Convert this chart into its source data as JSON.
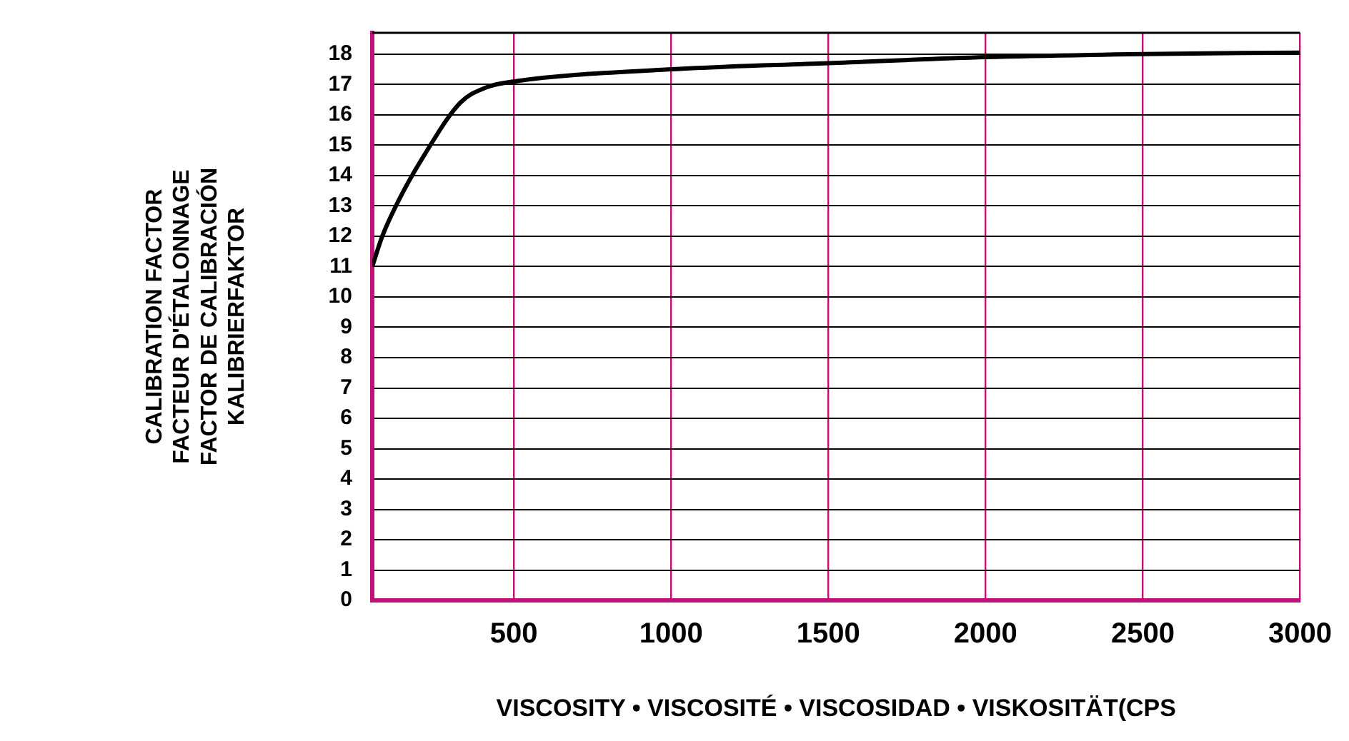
{
  "chart_data": {
    "type": "line",
    "xlabel": "VISCOSITY • VISCOSITÉ • VISCOSIDAD • VISKOSITÄT(CPS",
    "ylabel": "CALIBRATION FACTOR\nFACTEUR D'ÉTALONNAGE\nFACTOR DE CALIBRACIÓN\nKALIBRIERFAKTOR",
    "series": [
      {
        "color": "#000000",
        "x": [
          50,
          82,
          140,
          217,
          330,
          412,
          502,
          1000,
          1500,
          2000,
          2500,
          3000
        ],
        "values": [
          11,
          12,
          13.3,
          14.7,
          16.4,
          16.9,
          17.1,
          17.5,
          17.7,
          17.9,
          18,
          18.05
        ]
      }
    ],
    "xlim": [
      50,
      3000
    ],
    "xticks": [
      500,
      1000,
      1500,
      2000,
      2500,
      3000
    ],
    "ylim": [
      0,
      18.7
    ],
    "yticks": [
      0,
      1,
      2,
      3,
      4,
      5,
      6,
      7,
      8,
      9,
      10,
      11,
      12,
      13,
      14,
      15,
      16,
      17,
      18
    ],
    "grid": true,
    "legend": false,
    "marker": "none",
    "line_style": "solid"
  }
}
